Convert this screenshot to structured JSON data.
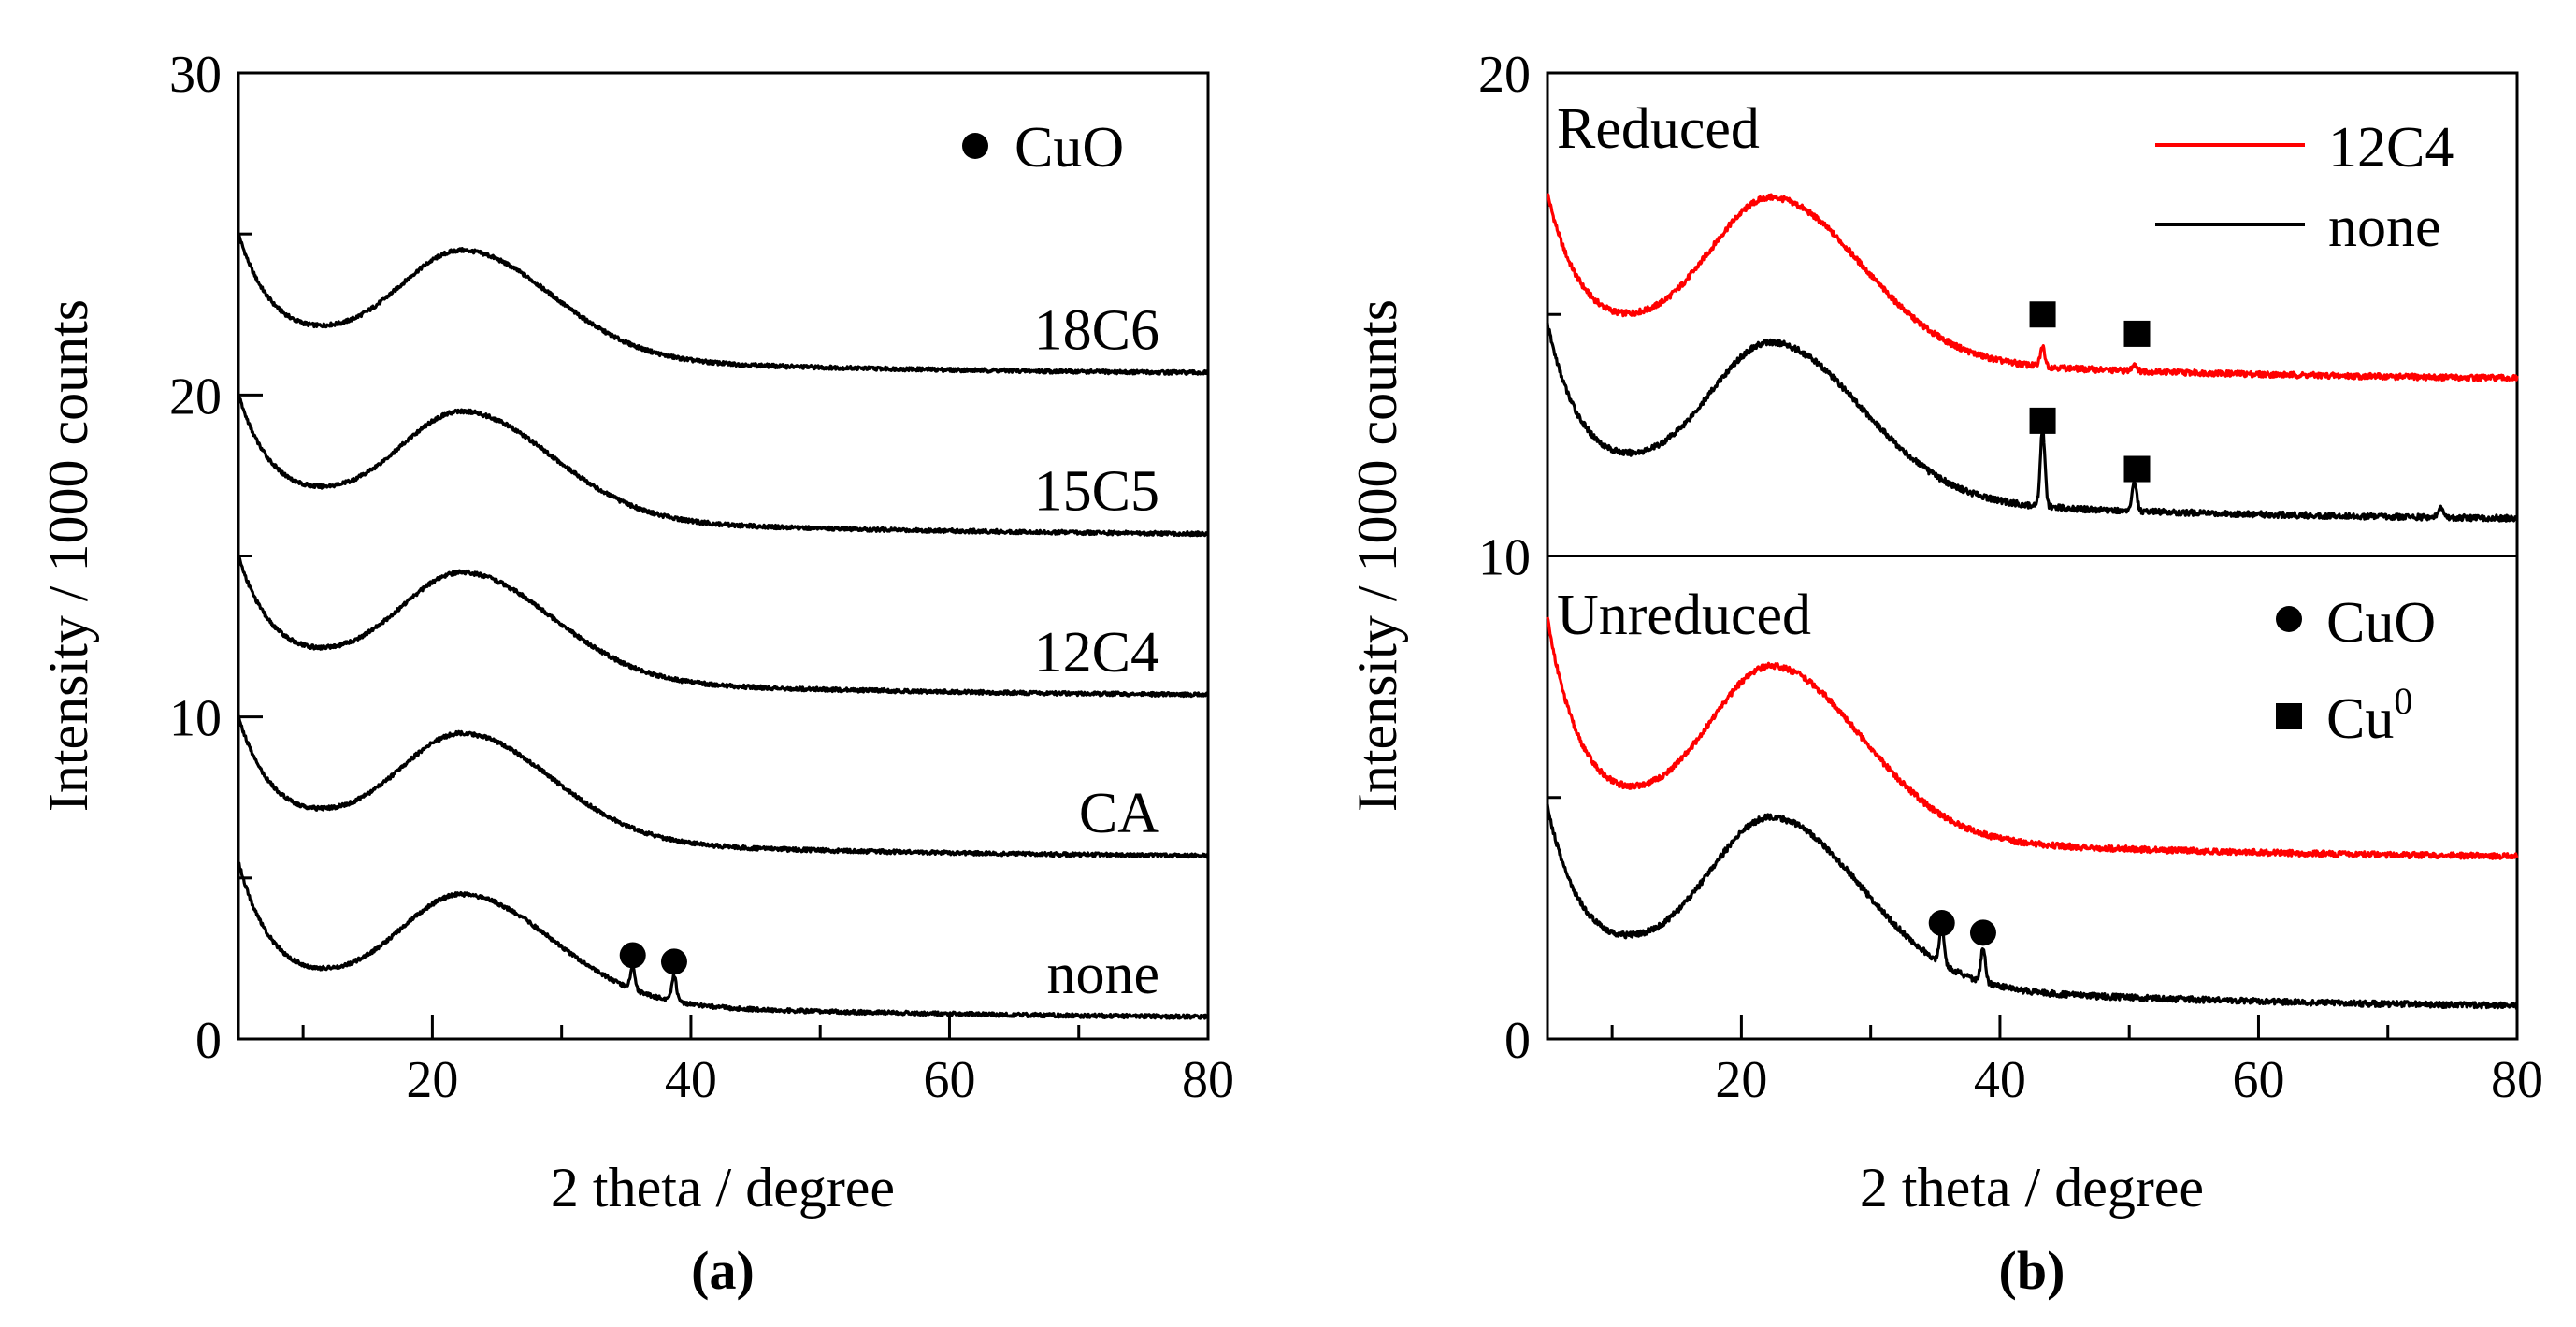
{
  "chart_data": [
    {
      "id": "a",
      "type": "line",
      "panel_label": "(a)",
      "xlabel": "2 theta / degree",
      "ylabel": "Intensity / 1000 counts",
      "xlim": [
        5,
        80
      ],
      "ylim": [
        0,
        30
      ],
      "xticks": [
        20,
        40,
        60,
        80
      ],
      "yticks": [
        0,
        10,
        20,
        30
      ],
      "legend": [
        {
          "marker": "circle",
          "label": "CuO"
        }
      ],
      "series": [
        {
          "name": "18C6",
          "color": "#000000",
          "baseline": 20.6,
          "start": 25.0,
          "start_decay": 2.6,
          "hump": 21.6,
          "hump_peak": 23.8,
          "peaks": []
        },
        {
          "name": "15C5",
          "color": "#000000",
          "baseline": 15.6,
          "start": 20.0,
          "start_decay": 2.6,
          "hump": 16.6,
          "hump_peak": 18.8,
          "peaks": []
        },
        {
          "name": "12C4",
          "color": "#000000",
          "baseline": 10.6,
          "start": 15.0,
          "start_decay": 2.6,
          "hump": 11.6,
          "hump_peak": 13.8,
          "peaks": []
        },
        {
          "name": "CA",
          "color": "#000000",
          "baseline": 5.6,
          "start": 10.0,
          "start_decay": 2.6,
          "hump": 6.6,
          "hump_peak": 8.8,
          "peaks": []
        },
        {
          "name": "none",
          "color": "#000000",
          "baseline": 0.6,
          "start": 5.5,
          "start_decay": 2.6,
          "hump": 1.6,
          "hump_peak": 3.8,
          "peaks": [
            {
              "x": 35.5,
              "height": 0.7
            },
            {
              "x": 38.7,
              "height": 0.8
            }
          ]
        }
      ],
      "markers": [
        {
          "type": "circle",
          "x": 35.5,
          "y": 2.6
        },
        {
          "type": "circle",
          "x": 38.7,
          "y": 2.4
        }
      ]
    },
    {
      "id": "b",
      "type": "line",
      "panel_label": "(b)",
      "xlabel": "2 theta / degree",
      "ylabel": "Intensity / 1000 counts",
      "xlim": [
        5,
        80
      ],
      "ylim": [
        0,
        20
      ],
      "xticks": [
        20,
        40,
        60,
        80
      ],
      "yticks": [
        0,
        10,
        20
      ],
      "divider_y": 10,
      "section_labels": [
        "Reduced",
        "Unreduced"
      ],
      "legend_top": [
        {
          "color": "#ff0000",
          "label": "12C4"
        },
        {
          "color": "#000000",
          "label": "none"
        }
      ],
      "legend_bottom": [
        {
          "marker": "circle",
          "label": "CuO"
        },
        {
          "marker": "square",
          "label": "Cu",
          "sup": "0"
        }
      ],
      "series": [
        {
          "name": "12C4 reduced",
          "color": "#ff0000",
          "baseline": 13.6,
          "start": 17.5,
          "start_decay": 2.6,
          "hump": 14.5,
          "hump_peak": 16.8,
          "peaks": [
            {
              "x": 43.3,
              "height": 0.4
            },
            {
              "x": 50.4,
              "height": 0.15
            }
          ]
        },
        {
          "name": "none reduced",
          "color": "#000000",
          "baseline": 10.7,
          "start": 14.8,
          "start_decay": 2.6,
          "hump": 11.6,
          "hump_peak": 13.8,
          "peaks": [
            {
              "x": 43.3,
              "height": 1.6
            },
            {
              "x": 50.4,
              "height": 0.6
            },
            {
              "x": 74.1,
              "height": 0.2
            }
          ]
        },
        {
          "name": "12C4 unreduced",
          "color": "#ff0000",
          "baseline": 3.7,
          "start": 8.7,
          "start_decay": 2.6,
          "hump": 4.6,
          "hump_peak": 7.1,
          "peaks": []
        },
        {
          "name": "none unreduced",
          "color": "#000000",
          "baseline": 0.6,
          "start": 4.8,
          "start_decay": 2.6,
          "hump": 1.6,
          "hump_peak": 3.9,
          "peaks": [
            {
              "x": 35.5,
              "height": 0.8
            },
            {
              "x": 38.7,
              "height": 0.7
            }
          ]
        }
      ],
      "markers": [
        {
          "type": "square",
          "x": 43.3,
          "y": 15.0
        },
        {
          "type": "square",
          "x": 50.6,
          "y": 14.6
        },
        {
          "type": "square",
          "x": 43.3,
          "y": 12.8
        },
        {
          "type": "square",
          "x": 50.6,
          "y": 11.8
        },
        {
          "type": "circle",
          "x": 35.5,
          "y": 2.4
        },
        {
          "type": "circle",
          "x": 38.7,
          "y": 2.2
        }
      ]
    }
  ]
}
